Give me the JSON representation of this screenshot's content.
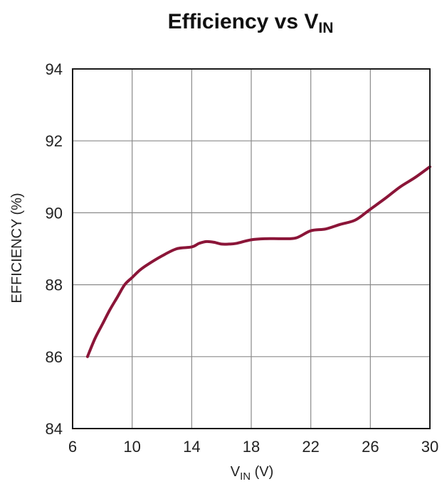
{
  "chart_data": {
    "type": "line",
    "title": {
      "main": "Efficiency vs V",
      "subscript": "IN"
    },
    "xlabel": {
      "main": "V",
      "subscript": "IN",
      "suffix": " (V)"
    },
    "ylabel": "EFFICIENCY (%)",
    "xlim": [
      6,
      30
    ],
    "ylim": [
      84,
      94
    ],
    "x_ticks": [
      "6",
      "10",
      "14",
      "18",
      "22",
      "26",
      "30"
    ],
    "y_ticks": [
      "84",
      "86",
      "88",
      "90",
      "92",
      "94"
    ],
    "grid": true,
    "series": [
      {
        "color": "#8b1538",
        "x": [
          7,
          7.5,
          8,
          8.5,
          9,
          9.5,
          10,
          10.5,
          11,
          12,
          13,
          14,
          14.5,
          15,
          15.5,
          16,
          16.5,
          17,
          18,
          19,
          20,
          21,
          22,
          23,
          24,
          25,
          26,
          27,
          28,
          29,
          30
        ],
        "y": [
          86.0,
          86.5,
          86.9,
          87.3,
          87.65,
          88.0,
          88.2,
          88.4,
          88.55,
          88.8,
          89.0,
          89.05,
          89.15,
          89.2,
          89.18,
          89.13,
          89.13,
          89.15,
          89.25,
          89.28,
          89.28,
          89.3,
          89.5,
          89.55,
          89.68,
          89.8,
          90.1,
          90.4,
          90.72,
          90.98,
          91.28
        ]
      }
    ]
  }
}
